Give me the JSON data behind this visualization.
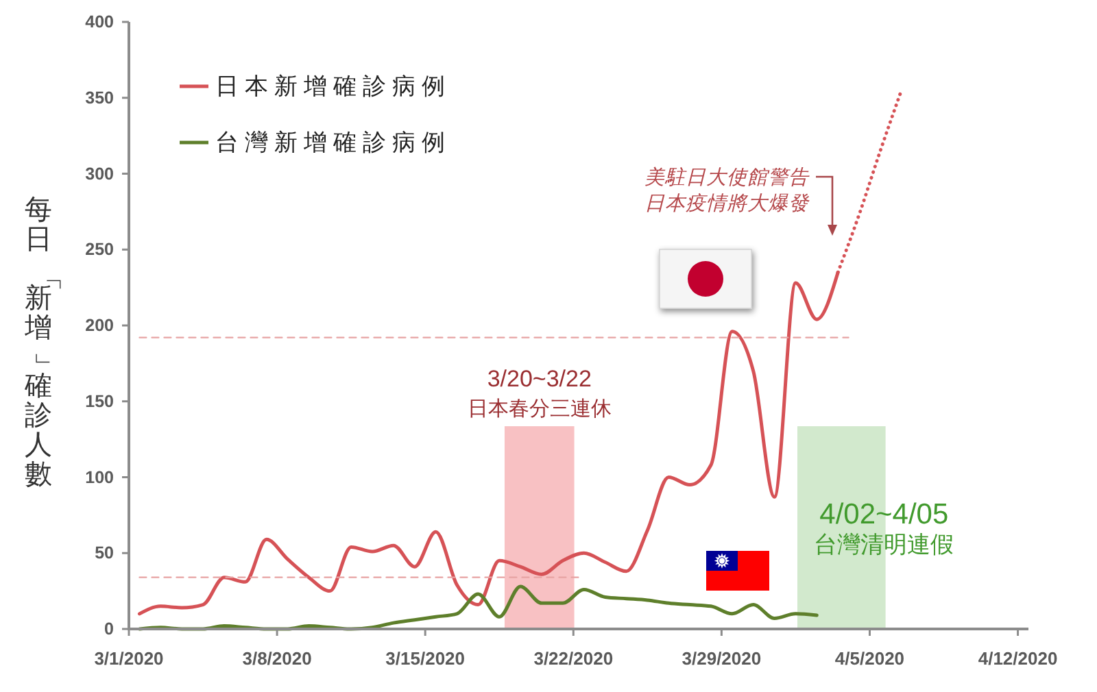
{
  "chart_data": {
    "type": "line",
    "ylabel": "每日「新增」確診人數",
    "x": [
      "2020-03-01T12:00",
      "2020-03-02T12:00",
      "2020-03-03T12:00",
      "2020-03-04T12:00",
      "2020-03-05T12:00",
      "2020-03-06T12:00",
      "2020-03-07T12:00",
      "2020-03-08T12:00",
      "2020-03-09T12:00",
      "2020-03-10T12:00",
      "2020-03-11T12:00",
      "2020-03-12T12:00",
      "2020-03-13T12:00",
      "2020-03-14T12:00",
      "2020-03-15T12:00",
      "2020-03-16T12:00",
      "2020-03-17T12:00",
      "2020-03-18T12:00",
      "2020-03-19T12:00",
      "2020-03-20T12:00",
      "2020-03-21T12:00",
      "2020-03-22T12:00",
      "2020-03-23T12:00",
      "2020-03-24T12:00",
      "2020-03-25T12:00",
      "2020-03-26T12:00",
      "2020-03-27T12:00",
      "2020-03-28T12:00",
      "2020-03-29T12:00",
      "2020-03-30T12:00",
      "2020-03-31T12:00",
      "2020-04-01T12:00",
      "2020-04-02T12:00",
      "2020-04-03T12:00"
    ],
    "series": [
      {
        "name": "日本新增確診病例",
        "color": "#d65256",
        "values": [
          10,
          15,
          14,
          16,
          34,
          31,
          59,
          46,
          34,
          25,
          54,
          51,
          55,
          41,
          64,
          29,
          16,
          45,
          41,
          36,
          45,
          50,
          44,
          38,
          65,
          100,
          95,
          108,
          196,
          170,
          87,
          228,
          204,
          235
        ]
      },
      {
        "color": "#d65256",
        "line_style": "dotted",
        "x": [
          "2020-04-03T12:00",
          "2020-04-04T12:00",
          "2020-04-05T12:00",
          "2020-04-06T12:00"
        ],
        "values": [
          235,
          273,
          315,
          355
        ]
      },
      {
        "name": "台灣新增確診病例",
        "color": "#5e7f2b",
        "values": [
          0,
          1,
          0,
          0,
          2,
          1,
          0,
          0,
          2,
          1,
          0,
          1,
          4,
          6,
          8,
          10,
          23,
          8,
          28,
          17,
          17,
          26,
          21,
          20,
          19,
          17,
          16,
          15,
          10,
          16,
          7,
          10,
          9,
          null
        ]
      },
      {
        "color": "#e7a3a3",
        "line_style": "dashed",
        "x": [
          "2020-03-01T12:00",
          "2020-04-04T00:00"
        ],
        "values": [
          192,
          192
        ]
      },
      {
        "color": "#e7a3a3",
        "line_style": "dashed",
        "x": [
          "2020-03-01T12:00",
          "2020-03-22T06:00"
        ],
        "values": [
          34,
          34
        ]
      }
    ],
    "xlim": [
      "2020-03-01",
      "2020-04-12T12:00"
    ],
    "xticks": [
      {
        "value": "2020-03-01",
        "label": "3/1/2020"
      },
      {
        "value": "2020-03-08",
        "label": "3/8/2020"
      },
      {
        "value": "2020-03-15",
        "label": "3/15/2020"
      },
      {
        "value": "2020-03-22",
        "label": "3/22/2020"
      },
      {
        "value": "2020-03-29",
        "label": "3/29/2020"
      },
      {
        "value": "2020-04-05",
        "label": "4/5/2020"
      },
      {
        "value": "2020-04-12",
        "label": "4/12/2020"
      }
    ],
    "ylim": [
      0,
      400
    ],
    "yticks": [
      0,
      50,
      100,
      150,
      200,
      250,
      300,
      350,
      400
    ],
    "bands": [
      {
        "axis": "x",
        "from": "2020-03-18T18:00",
        "to": "2020-03-22T01:00",
        "label": "3/20~3/22\n日本春分三連休",
        "color": "#f8c1c3"
      },
      {
        "axis": "x",
        "from": "2020-04-01T14:00",
        "to": "2020-04-05T18:00",
        "label": "4/02~4/05\n台灣清明連假",
        "color": "#d2e9cd"
      }
    ],
    "annotations": [
      "美駐日大使館警告日本疫情將大爆發"
    ],
    "legend": "top left"
  }
}
